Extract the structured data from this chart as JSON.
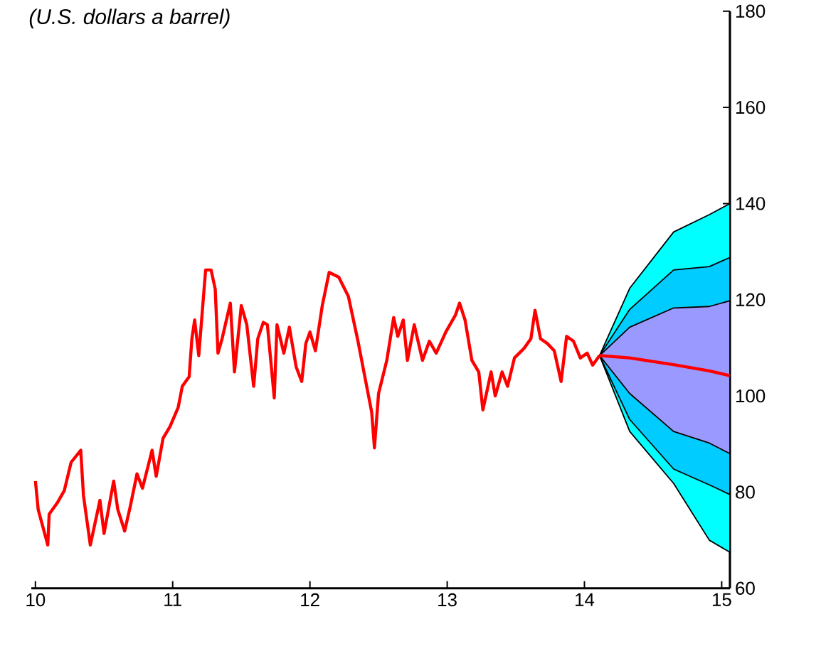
{
  "chart_data": {
    "type": "line",
    "subtitle": "(U.S. dollars a barrel)",
    "xlim": [
      9.97,
      15.06
    ],
    "xticks": [
      10,
      11,
      12,
      13,
      14,
      15
    ],
    "ylim": [
      60,
      180
    ],
    "yticks": [
      60,
      80,
      100,
      120,
      140,
      160,
      180
    ],
    "grid": false,
    "series": [
      {
        "color": "#ff0000",
        "x": [
          10.0,
          10.02,
          10.09,
          10.1,
          10.16,
          10.21,
          10.26,
          10.33,
          10.35,
          10.4,
          10.47,
          10.5,
          10.57,
          10.6,
          10.65,
          10.69,
          10.74,
          10.78,
          10.85,
          10.88,
          10.93,
          10.98,
          11.04,
          11.07,
          11.12,
          11.14,
          11.16,
          11.19,
          11.24,
          11.28,
          11.31,
          11.33,
          11.36,
          11.42,
          11.45,
          11.5,
          11.54,
          11.59,
          11.62,
          11.66,
          11.69,
          11.74,
          11.76,
          11.81,
          11.85,
          11.9,
          11.94,
          11.97,
          12.0,
          12.04,
          12.09,
          12.14,
          12.21,
          12.28,
          12.35,
          12.4,
          12.45,
          12.47,
          12.5,
          12.56,
          12.61,
          12.64,
          12.68,
          12.71,
          12.76,
          12.82,
          12.87,
          12.92,
          12.99,
          13.06,
          13.09,
          13.13,
          13.18,
          13.23,
          13.26,
          13.32,
          13.35,
          13.4,
          13.44,
          13.49,
          13.56,
          13.61,
          13.64,
          13.68,
          13.73,
          13.78,
          13.83,
          13.87,
          13.92,
          13.97,
          14.02,
          14.06,
          14.11
        ],
        "values": [
          82.3,
          76.4,
          69.0,
          75.4,
          77.8,
          80.3,
          86.2,
          88.7,
          79.3,
          69.0,
          78.3,
          71.4,
          82.3,
          76.4,
          71.9,
          76.9,
          83.8,
          80.8,
          88.7,
          83.3,
          91.2,
          93.6,
          97.6,
          102.0,
          104.0,
          111.9,
          115.8,
          108.4,
          126.2,
          126.2,
          122.2,
          108.9,
          111.9,
          119.3,
          105.0,
          118.8,
          114.8,
          102.0,
          111.9,
          115.3,
          114.8,
          99.6,
          114.8,
          108.9,
          114.3,
          106.0,
          103.0,
          110.9,
          113.3,
          109.4,
          118.8,
          125.7,
          124.7,
          120.7,
          111.4,
          104.0,
          96.6,
          89.2,
          100.5,
          107.4,
          116.3,
          112.4,
          115.8,
          107.4,
          114.8,
          107.4,
          111.4,
          108.9,
          113.3,
          116.8,
          119.3,
          115.8,
          107.4,
          105.0,
          97.1,
          105.0,
          100.0,
          105.0,
          102.0,
          107.9,
          109.9,
          111.9,
          117.8,
          111.9,
          110.9,
          109.4,
          103.0,
          112.4,
          111.4,
          107.9,
          108.9,
          106.4,
          108.4
        ]
      },
      {
        "color": "#00ffff",
        "x": [
          14.11,
          14.33,
          14.65,
          14.91,
          15.06
        ],
        "values": [
          null,
          null,
          null,
          null,
          null
        ],
        "lower": [
          108.4,
          92.6,
          81.8,
          70.0,
          67.5
        ],
        "upper": [
          108.4,
          122.4,
          134.1,
          137.7,
          140.0
        ]
      },
      {
        "color": "#00ccff",
        "x": [
          14.11,
          14.33,
          14.65,
          14.91,
          15.06
        ],
        "values": [
          null,
          null,
          null,
          null,
          null
        ],
        "lower": [
          108.4,
          95.1,
          84.8,
          81.5,
          79.5
        ],
        "upper": [
          108.4,
          118.0,
          126.2,
          126.9,
          128.8
        ]
      },
      {
        "color": "#9999ff",
        "x": [
          14.11,
          14.33,
          14.65,
          14.91,
          15.06
        ],
        "values": [
          null,
          null,
          null,
          null,
          null
        ],
        "lower": [
          108.4,
          100.5,
          92.6,
          90.2,
          88.0
        ],
        "upper": [
          108.4,
          114.3,
          118.3,
          118.6,
          119.8
        ]
      },
      {
        "color": "#ff0000",
        "x": [
          14.11,
          14.33,
          14.65,
          14.91,
          15.06
        ],
        "values": [
          108.4,
          107.9,
          106.5,
          105.2,
          104.2
        ]
      }
    ]
  }
}
